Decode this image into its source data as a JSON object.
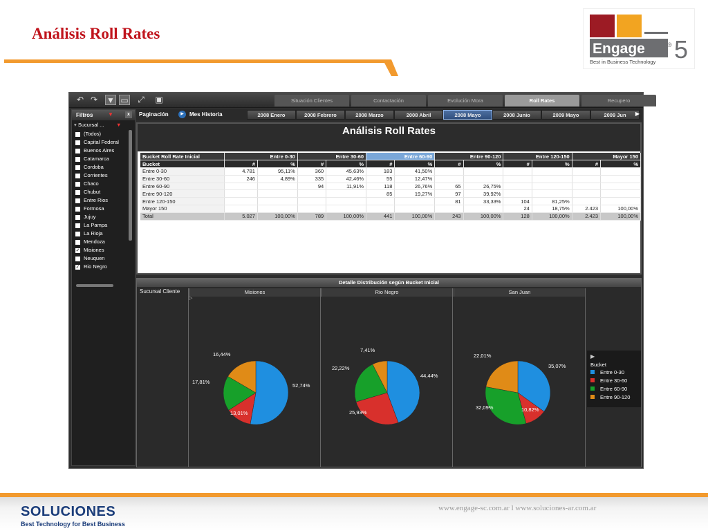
{
  "slide": {
    "title": "Análisis Roll Rates",
    "accent_color": "#f29a2e",
    "title_color": "#c0141c"
  },
  "logo": {
    "brand": "Engage",
    "registered": "®",
    "number": "5",
    "tagline": "Best in Business Technology",
    "colors": {
      "red": "#9c1b24",
      "orange": "#f2a421",
      "gray": "#6d6e71"
    }
  },
  "toolbar": {
    "icons": [
      "undo-icon",
      "redo-icon",
      "filter-icon",
      "comment-icon",
      "expand-icon",
      "monitor-icon"
    ],
    "tabs": [
      {
        "label": "Situación Clientes",
        "active": false
      },
      {
        "label": "Contactación",
        "active": false
      },
      {
        "label": "Evolución Mora",
        "active": false
      },
      {
        "label": "Roll Rates",
        "active": true
      },
      {
        "label": "Recupero",
        "active": false
      }
    ]
  },
  "filters": {
    "title": "Filtros",
    "field": "Sucursal ...",
    "items": [
      {
        "label": "(Todos)",
        "checked": false
      },
      {
        "label": "Capital Federal",
        "checked": false
      },
      {
        "label": "Buenos Aires",
        "checked": false
      },
      {
        "label": "Catamarca",
        "checked": false
      },
      {
        "label": "Cordoba",
        "checked": false
      },
      {
        "label": "Corrientes",
        "checked": false
      },
      {
        "label": "Chaco",
        "checked": false
      },
      {
        "label": "Chubut",
        "checked": false
      },
      {
        "label": "Entre Rios",
        "checked": false
      },
      {
        "label": "Formosa",
        "checked": false
      },
      {
        "label": "Jujuy",
        "checked": false
      },
      {
        "label": "La Pampa",
        "checked": false
      },
      {
        "label": "La Rioja",
        "checked": false
      },
      {
        "label": "Mendoza",
        "checked": false
      },
      {
        "label": "Misiones",
        "checked": true
      },
      {
        "label": "Neuquen",
        "checked": false
      },
      {
        "label": "Rio Negro",
        "checked": true
      }
    ]
  },
  "pagination": {
    "label": "Paginación",
    "field": "Mes Historia",
    "months": [
      {
        "label": "2008 Enero",
        "active": false
      },
      {
        "label": "2008 Febrero",
        "active": false
      },
      {
        "label": "2008 Marzo",
        "active": false
      },
      {
        "label": "2008 Abril",
        "active": false
      },
      {
        "label": "2008 Mayo",
        "active": true
      },
      {
        "label": "2008 Junio",
        "active": false
      },
      {
        "label": "2009 Mayo",
        "active": false
      },
      {
        "label": "2009 Jun",
        "active": false
      }
    ]
  },
  "roll_rates": {
    "title": "Análisis Roll Rates",
    "corner_header": "Bucket Roll Rate Inicial",
    "row_header": "Bucket",
    "groups": [
      "Entre 0-30",
      "Entre 30-60",
      "Entre 60-90",
      "Entre 90-120",
      "Entre 120-150",
      "Mayor 150"
    ],
    "highlight_group": "Entre 60-90",
    "sub_headers": [
      "#",
      "%"
    ],
    "rows": [
      {
        "label": "Entre 0-30",
        "cells": [
          "4.781",
          "95,11%",
          "360",
          "45,63%",
          "183",
          "41,50%",
          "",
          "",
          "",
          "",
          "",
          ""
        ]
      },
      {
        "label": "Entre 30-60",
        "cells": [
          "246",
          "4,89%",
          "335",
          "42,46%",
          "55",
          "12,47%",
          "",
          "",
          "",
          "",
          "",
          ""
        ]
      },
      {
        "label": "Entre 60-90",
        "cells": [
          "",
          "",
          "94",
          "11,91%",
          "118",
          "26,76%",
          "65",
          "26,75%",
          "",
          "",
          "",
          ""
        ]
      },
      {
        "label": "Entre 90-120",
        "cells": [
          "",
          "",
          "",
          "",
          "85",
          "19,27%",
          "97",
          "39,92%",
          "",
          "",
          "",
          ""
        ]
      },
      {
        "label": "Entre 120-150",
        "cells": [
          "",
          "",
          "",
          "",
          "",
          "",
          "81",
          "33,33%",
          "104",
          "81,25%",
          "",
          ""
        ]
      },
      {
        "label": "Mayor 150",
        "cells": [
          "",
          "",
          "",
          "",
          "",
          "",
          "",
          "",
          "24",
          "18,75%",
          "2.423",
          "100,00%"
        ]
      },
      {
        "label": "Total",
        "cells": [
          "5.027",
          "100,00%",
          "789",
          "100,00%",
          "441",
          "100,00%",
          "243",
          "100,00%",
          "128",
          "100,00%",
          "2.423",
          "100,00%"
        ]
      }
    ]
  },
  "detail": {
    "title": "Detalle Distribución según Bucket Inicial",
    "row_label": "Sucursal Cliente",
    "legend_title": "Bucket",
    "legend_items": [
      {
        "label": "Entre 0-30",
        "color": "#1f8fe0"
      },
      {
        "label": "Entre 30-60",
        "color": "#d8302c"
      },
      {
        "label": "Entre 60-90",
        "color": "#17a02a"
      },
      {
        "label": "Entre 90-120",
        "color": "#e08b17"
      }
    ]
  },
  "chart_data": [
    {
      "type": "pie",
      "title": "Misiones",
      "categories": [
        "Entre 0-30",
        "Entre 30-60",
        "Entre 60-90",
        "Entre 90-120"
      ],
      "values": [
        52.74,
        13.01,
        17.81,
        16.44
      ],
      "labels": [
        "52,74%",
        "13,01%",
        "17,81%",
        "16,44%"
      ]
    },
    {
      "type": "pie",
      "title": "Rio Negro",
      "categories": [
        "Entre 0-30",
        "Entre 30-60",
        "Entre 60-90",
        "Entre 90-120"
      ],
      "values": [
        44.44,
        25.93,
        22.22,
        7.41
      ],
      "labels": [
        "44,44%",
        "25,93%",
        "22,22%",
        "7,41%"
      ]
    },
    {
      "type": "pie",
      "title": "San Juan",
      "categories": [
        "Entre 0-30",
        "Entre 30-60",
        "Entre 60-90",
        "Entre 90-120"
      ],
      "values": [
        35.07,
        10.82,
        32.09,
        22.01
      ],
      "labels": [
        "35,07%",
        "10,82%",
        "32,09%",
        "22,01%"
      ]
    }
  ],
  "footer": {
    "company": "SOLUCIONES",
    "tagline": "Best Technology for Best Business",
    "urls": "www.engage-sc.com.ar   l   www.soluciones-ar.com.ar"
  }
}
